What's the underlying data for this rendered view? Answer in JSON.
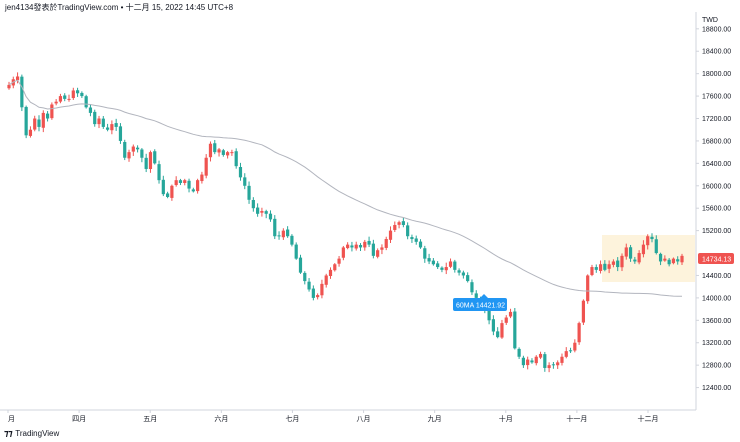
{
  "header": {
    "text": "jen4134發表於TradingView.com • 十二月 15, 2022 14:45 UTC+8"
  },
  "footer": {
    "brand": "TradingView"
  },
  "chart_data": {
    "type": "candlestick",
    "currency": "TWD",
    "y_ticks": [
      12400,
      12800,
      13200,
      13600,
      14000,
      14400,
      15200,
      15600,
      16000,
      16400,
      16800,
      17200,
      17600,
      18000,
      18400,
      18800
    ],
    "ylim": [
      12000,
      19100
    ],
    "x_labels": [
      "月",
      "四月",
      "五月",
      "六月",
      "七月",
      "八月",
      "九月",
      "十月",
      "十一月",
      "十二月"
    ],
    "price_label": "14734.13",
    "ma_label": "60MA 14421.92",
    "colors": {
      "up": "#ef5350",
      "down": "#26a69a",
      "ma": "#b2b5be",
      "price_tag": "#ef5350",
      "ma_tag": "#2196f3",
      "highlight": "#fdf3dc"
    },
    "close": [
      17800,
      17900,
      17950,
      17400,
      16900,
      17000,
      17200,
      17050,
      17300,
      17200,
      17450,
      17500,
      17600,
      17550,
      17550,
      17700,
      17650,
      17600,
      17400,
      17300,
      17100,
      17200,
      17050,
      17000,
      17100,
      17050,
      16800,
      16500,
      16600,
      16700,
      16650,
      16500,
      16300,
      16600,
      16400,
      16100,
      15850,
      15800,
      16000,
      16100,
      16050,
      16100,
      15950,
      15900,
      16100,
      16200,
      16500,
      16750,
      16600,
      16650,
      16550,
      16600,
      16600,
      16350,
      16150,
      16000,
      15750,
      15600,
      15500,
      15550,
      15500,
      15400,
      15100,
      15100,
      15200,
      15100,
      14950,
      14700,
      14450,
      14300,
      14150,
      14000,
      14050,
      14250,
      14400,
      14500,
      14600,
      14700,
      14900,
      14950,
      14900,
      14950,
      14900,
      15000,
      14950,
      14750,
      14850,
      14900,
      15050,
      15200,
      15300,
      15350,
      15300,
      15100,
      15050,
      15000,
      14900,
      14700,
      14650,
      14600,
      14550,
      14500,
      14550,
      14650,
      14500,
      14450,
      14400,
      14300,
      14100,
      14000,
      13850,
      13800,
      13600,
      13400,
      13300,
      13550,
      13650,
      13750,
      13100,
      12950,
      12800,
      12900,
      12850,
      12950,
      13000,
      12750,
      12800,
      12800,
      12850,
      12950,
      13050,
      13050,
      13200,
      13550,
      13950,
      14400,
      14550,
      14500,
      14600,
      14500,
      14600,
      14650,
      14550,
      14750,
      14900,
      14700,
      14650,
      14800,
      14950,
      15100,
      15050,
      14800,
      14650,
      14700,
      14600,
      14700,
      14650,
      14750
    ]
  }
}
